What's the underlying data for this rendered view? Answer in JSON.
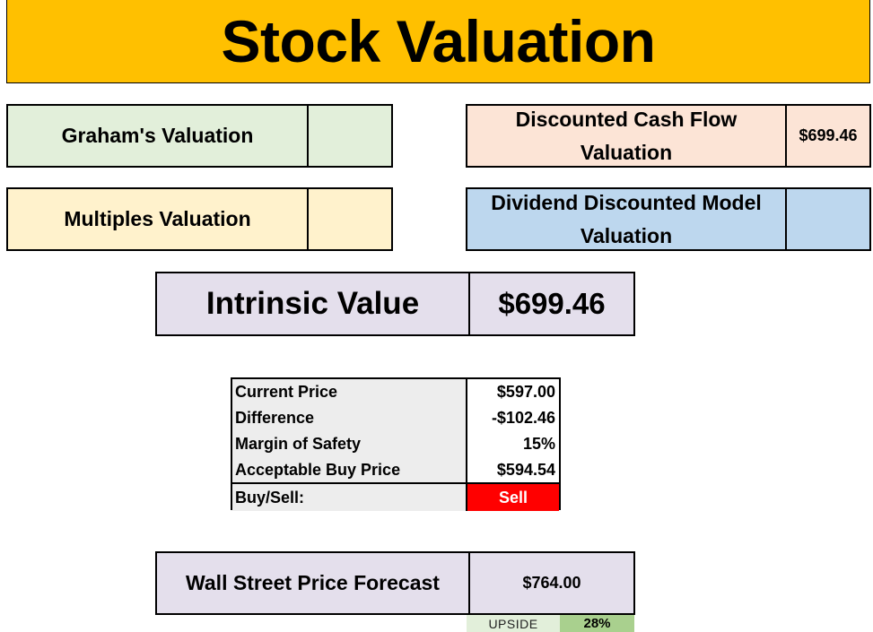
{
  "title": "Stock Valuation",
  "valuations": {
    "graham": {
      "label": "Graham's Valuation",
      "value": ""
    },
    "multiples": {
      "label": "Multiples Valuation",
      "value": ""
    },
    "dcf": {
      "label": "Discounted Cash Flow Valuation",
      "value": "$699.46"
    },
    "ddm": {
      "label": "Dividend Discounted Model Valuation",
      "value": ""
    }
  },
  "intrinsic": {
    "label": "Intrinsic Value",
    "value": "$699.46"
  },
  "price_table": {
    "rows": [
      {
        "label": "Current Price",
        "value": "$597.00"
      },
      {
        "label": "Difference",
        "value": "-$102.46"
      },
      {
        "label": "Margin of Safety",
        "value": "15%"
      },
      {
        "label": "Acceptable Buy Price",
        "value": "$594.54"
      }
    ],
    "buy_sell": {
      "label": "Buy/Sell:",
      "value": "Sell"
    }
  },
  "forecast": {
    "label": "Wall Street Price Forecast",
    "value": "$764.00"
  },
  "upside": {
    "label": "UPSIDE",
    "value": "28%"
  },
  "colors": {
    "title_bg": "#FFC000",
    "graham_bg": "#E2EFDA",
    "multiples_bg": "#FFF2CC",
    "dcf_bg": "#FCE4D6",
    "ddm_bg": "#BDD7EE",
    "intrinsic_bg": "#E4DFEC",
    "sell_bg": "#FF0000",
    "upside_bg": "#A9D08E"
  }
}
